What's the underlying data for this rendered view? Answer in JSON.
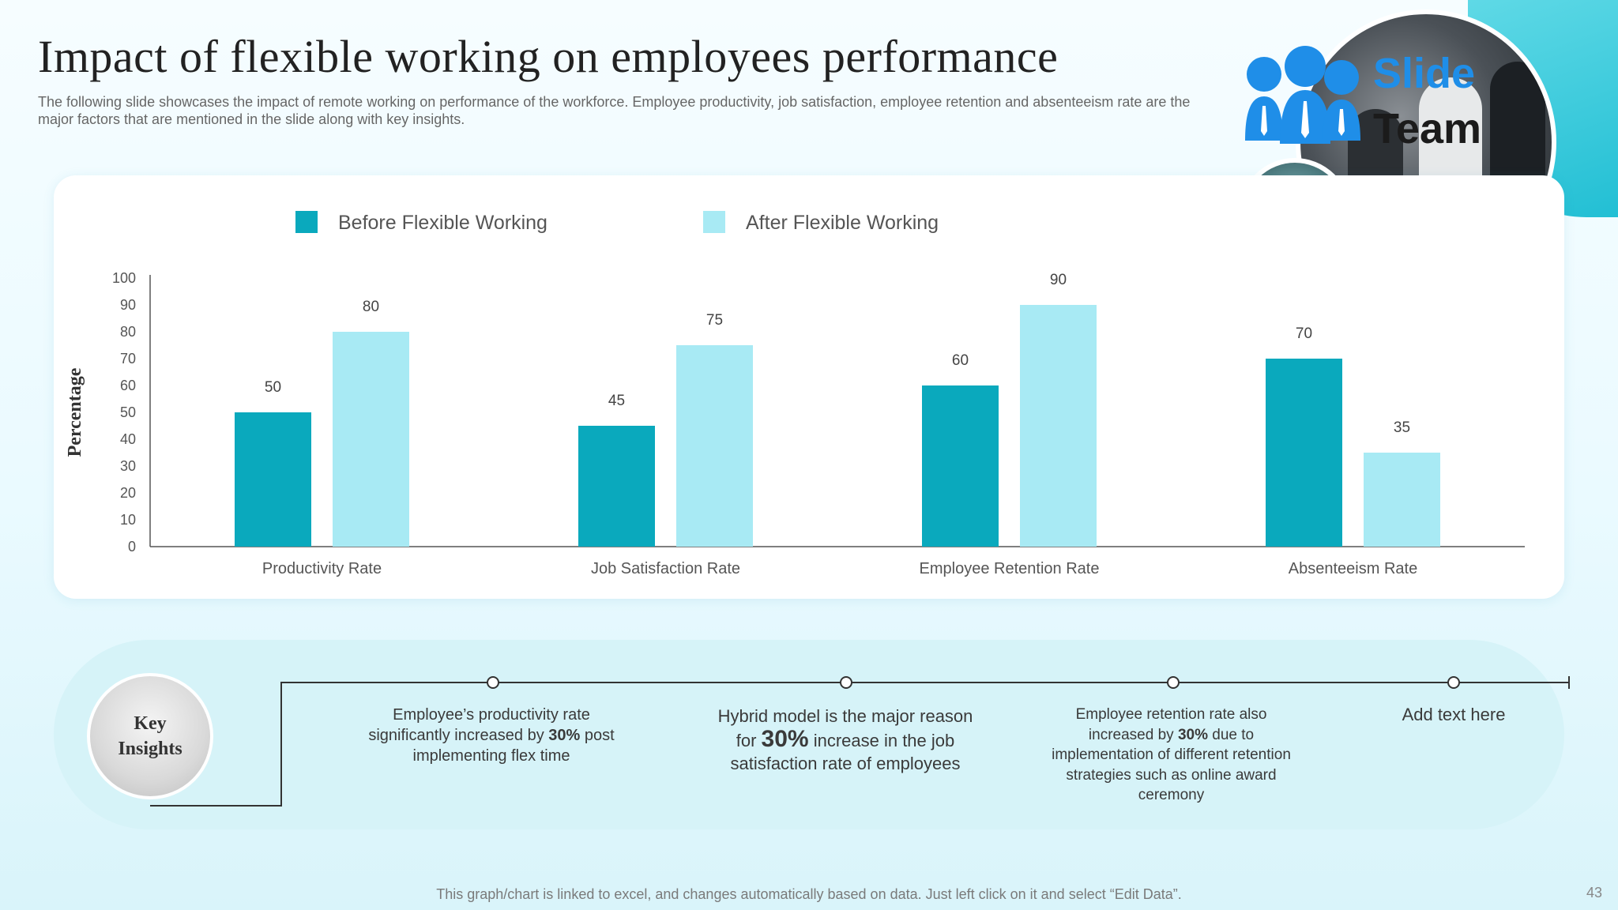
{
  "slide": {
    "title": "Impact of flexible working on employees performance",
    "subtitle": "The following slide showcases the impact of remote working on performance of the workforce. Employee productivity, job satisfaction, employee retention and absenteeism rate are the major factors that are mentioned in the slide along with key insights.",
    "logo_line1": "Slide",
    "logo_line2": "Team",
    "footer_note": "This graph/chart is linked to excel, and changes automatically based on data. Just left click on it and select “Edit Data”.",
    "page_number": "43"
  },
  "chart_data": {
    "type": "bar",
    "title": "",
    "xlabel": "",
    "ylabel": "Percentage",
    "ylim": [
      0,
      100
    ],
    "yticks": [
      0,
      10,
      20,
      30,
      40,
      50,
      60,
      70,
      80,
      90,
      100
    ],
    "categories": [
      "Productivity Rate",
      "Job Satisfaction Rate",
      "Employee Retention Rate",
      "Absenteeism Rate"
    ],
    "series": [
      {
        "name": "Before Flexible Working",
        "color": "#0aa9bd",
        "values": [
          50,
          45,
          60,
          70
        ]
      },
      {
        "name": "After Flexible Working",
        "color": "#a8eaf4",
        "values": [
          80,
          75,
          90,
          35
        ]
      }
    ],
    "legend_position": "top",
    "grid": false,
    "data_labels": true
  },
  "insights": {
    "label": "Key Insights",
    "items": [
      {
        "pre": "Employee’s productivity rate significantly increased by ",
        "bold": "30%",
        "post": " post implementing flex time"
      },
      {
        "pre": "Hybrid model is the major reason for ",
        "bold": "30%",
        "post": " increase in the job satisfaction rate of employees"
      },
      {
        "pre": "Employee retention rate also increased by ",
        "bold": "30%",
        "post": " due to implementation of different retention strategies such as online award ceremony"
      },
      {
        "pre": "Add text here",
        "bold": "",
        "post": ""
      }
    ]
  }
}
